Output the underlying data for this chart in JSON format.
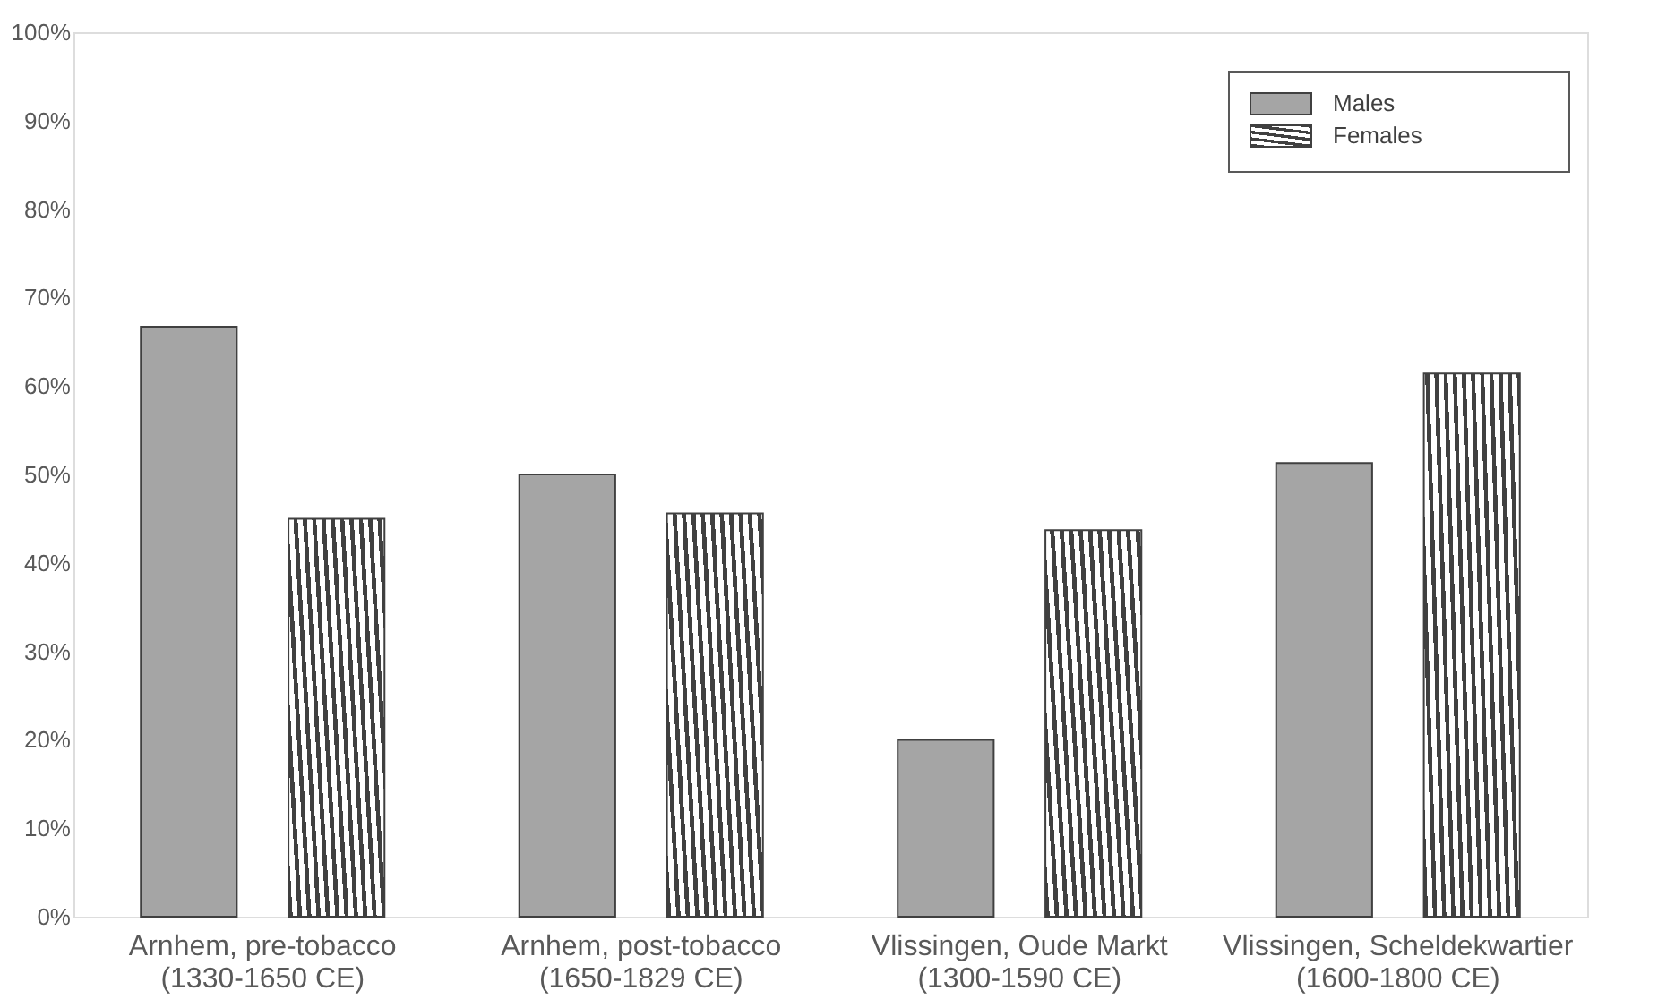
{
  "chart_data": {
    "type": "bar",
    "categories": [
      "Arnhem, pre-tobacco\n(1330-1650 CE)",
      "Arnhem, post-tobacco\n(1650-1829 CE)",
      "Vlissingen, Oude Markt\n(1300-1590 CE)",
      "Vlissingen, Scheldekwartier\n(1600-1800 CE)"
    ],
    "series": [
      {
        "name": "Males",
        "color": "#a5a5a5",
        "values": [
          66.7,
          50.0,
          20.0,
          51.3
        ]
      },
      {
        "name": "Females",
        "color": "#404040",
        "values": [
          45.0,
          45.6,
          43.7,
          61.4
        ]
      }
    ],
    "ylim": [
      0,
      100
    ],
    "yticks": [
      {
        "value": 0,
        "label": "0%"
      },
      {
        "value": 10,
        "label": "10%"
      },
      {
        "value": 20,
        "label": "20%"
      },
      {
        "value": 30,
        "label": "30%"
      },
      {
        "value": 40,
        "label": "40%"
      },
      {
        "value": 50,
        "label": "50%"
      },
      {
        "value": 60,
        "label": "60%"
      },
      {
        "value": 70,
        "label": "70%"
      },
      {
        "value": 80,
        "label": "80%"
      },
      {
        "value": 90,
        "label": "90%"
      },
      {
        "value": 100,
        "label": "100%"
      }
    ],
    "grid": false,
    "legend": "top right"
  }
}
